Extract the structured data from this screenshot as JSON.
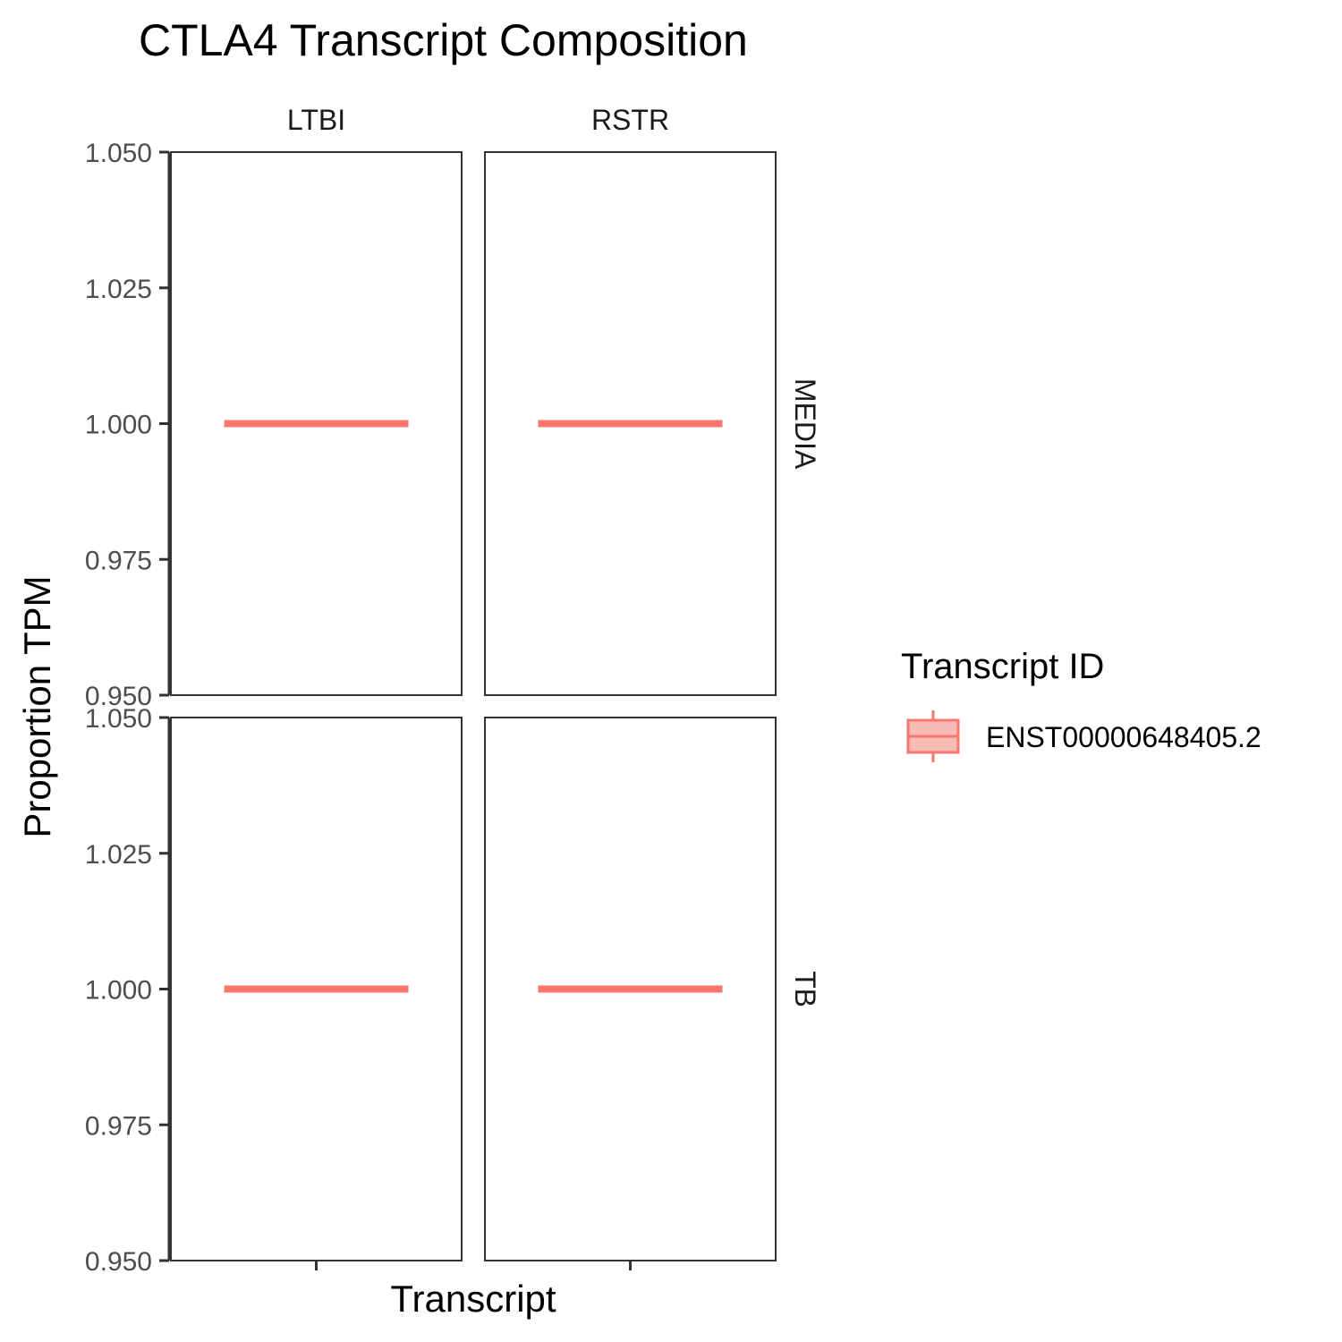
{
  "chart_data": {
    "type": "box",
    "title": "CTLA4 Transcript Composition",
    "xlabel": "Transcript",
    "ylabel": "Proportion TPM",
    "ylim": [
      0.95,
      1.05
    ],
    "yticks": [
      "0.950",
      "0.975",
      "1.000",
      "1.025",
      "1.050"
    ],
    "ytick_values": [
      0.95,
      0.975,
      1.0,
      1.025,
      1.05
    ],
    "facet_columns": [
      "LTBI",
      "RSTR"
    ],
    "facet_rows": [
      "MEDIA",
      "TB"
    ],
    "grid": false,
    "legend": {
      "title": "Transcript ID",
      "position": "right",
      "entries": [
        {
          "label": "ENST00000648405.2",
          "color": "#F8766D"
        }
      ]
    },
    "series": [
      {
        "transcript": "ENST00000648405.2",
        "condition": "MEDIA",
        "group": "LTBI",
        "min": 1.0,
        "q1": 1.0,
        "median": 1.0,
        "q3": 1.0,
        "max": 1.0
      },
      {
        "transcript": "ENST00000648405.2",
        "condition": "MEDIA",
        "group": "RSTR",
        "min": 1.0,
        "q1": 1.0,
        "median": 1.0,
        "q3": 1.0,
        "max": 1.0
      },
      {
        "transcript": "ENST00000648405.2",
        "condition": "TB",
        "group": "LTBI",
        "min": 1.0,
        "q1": 1.0,
        "median": 1.0,
        "q3": 1.0,
        "max": 1.0
      },
      {
        "transcript": "ENST00000648405.2",
        "condition": "TB",
        "group": "RSTR",
        "min": 1.0,
        "q1": 1.0,
        "median": 1.0,
        "q3": 1.0,
        "max": 1.0
      }
    ],
    "colors": {
      "box": "#F8766D",
      "box_fill": "#F9BBB6",
      "panel_border": "#333333",
      "tick": "#333333"
    }
  }
}
